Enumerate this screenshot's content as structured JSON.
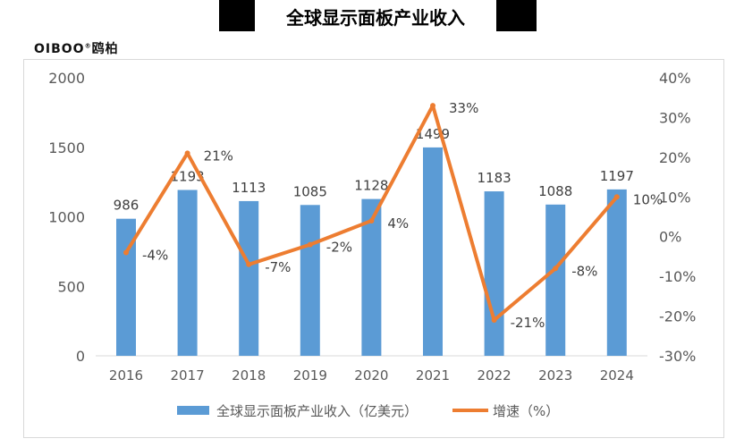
{
  "title": "全球显示面板产业收入",
  "logo": "OIBOO®鸥柏",
  "chart_data": {
    "type": "bar+line",
    "title": "全球显示面板产业收入",
    "categories": [
      "2016",
      "2017",
      "2018",
      "2019",
      "2020",
      "2021",
      "2022",
      "2023",
      "2024"
    ],
    "series": [
      {
        "name": "全球显示面板产业收入（亿美元）",
        "type": "bar",
        "axis": "left",
        "color": "#5B9BD5",
        "values": [
          986,
          1193,
          1113,
          1085,
          1128,
          1499,
          1183,
          1088,
          1197
        ]
      },
      {
        "name": "增速（%）",
        "type": "line",
        "axis": "right",
        "color": "#ED7D31",
        "values": [
          -4,
          21,
          -7,
          -2,
          4,
          33,
          -21,
          -8,
          10
        ]
      }
    ],
    "left_axis": {
      "ylim": [
        0,
        2000
      ],
      "ticks": [
        "0",
        "500",
        "1000",
        "1500",
        "2000"
      ]
    },
    "right_axis": {
      "ylim": [
        -30,
        40
      ],
      "ticks": [
        "-30%",
        "-20%",
        "-10%",
        "0%",
        "10%",
        "20%",
        "30%",
        "40%"
      ]
    },
    "grid": false,
    "legend": "bottom"
  }
}
